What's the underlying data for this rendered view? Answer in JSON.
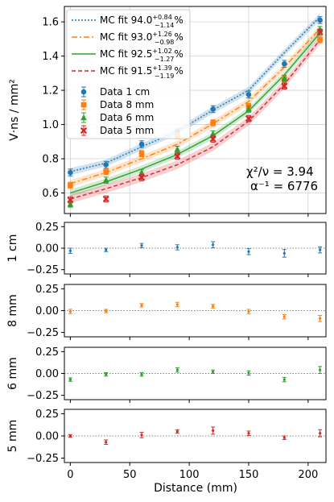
{
  "chart_data": {
    "type": "line",
    "x": [
      0,
      30,
      60,
      90,
      120,
      150,
      180,
      210
    ],
    "xlabel": "Distance (mm)",
    "xlim": [
      -5,
      215
    ],
    "xticks": [
      "0",
      "50",
      "100",
      "150",
      "200"
    ],
    "top": {
      "ylabel": "V·ns / mm²",
      "ylim": [
        0.48,
        1.69
      ],
      "yticks": [
        "0.6",
        "0.8",
        "1.0",
        "1.2",
        "1.4",
        "1.6"
      ],
      "grid": true,
      "legend_position": "top-left",
      "annotation": {
        "line1": "χ²/ν = 3.94",
        "line2": "α⁻¹ = 6776"
      },
      "fits": [
        {
          "name": "MC fit 94.0",
          "sup": "+0.84",
          "sub": "−1.14",
          "suffix": "%",
          "color": "#1f77b4",
          "dash": "2,2",
          "values": [
            0.725,
            0.775,
            0.87,
            0.96,
            1.085,
            1.2,
            1.42,
            1.63
          ],
          "band": 0.02
        },
        {
          "name": "MC fit 93.0",
          "sup": "+1.26",
          "sub": "−0.98",
          "suffix": "%",
          "color": "#ff7f0e",
          "dash": "7,3,2,3",
          "values": [
            0.655,
            0.72,
            0.8,
            0.885,
            1.005,
            1.135,
            1.335,
            1.56
          ],
          "band": 0.02
        },
        {
          "name": "MC fit 92.5",
          "sup": "+1.02",
          "sub": "−1.27",
          "suffix": "%",
          "color": "#2ca02c",
          "dash": "",
          "values": [
            0.6,
            0.665,
            0.74,
            0.825,
            0.935,
            1.08,
            1.29,
            1.535
          ],
          "band": 0.02
        },
        {
          "name": "MC fit 91.5",
          "sup": "+1.39",
          "sub": "−1.19",
          "suffix": "%",
          "color": "#d62728",
          "dash": "5,3",
          "values": [
            0.565,
            0.625,
            0.69,
            0.765,
            0.87,
            1.02,
            1.235,
            1.495
          ],
          "band": 0.025
        }
      ],
      "series": [
        {
          "name": "Data 1 cm",
          "color": "#1f77b4",
          "marker": "circle",
          "values": [
            0.72,
            0.765,
            0.885,
            0.955,
            1.09,
            1.175,
            1.355,
            1.61
          ],
          "err": 0.02
        },
        {
          "name": "Data 8 mm",
          "color": "#ff7f0e",
          "marker": "square",
          "values": [
            0.645,
            0.725,
            0.83,
            0.935,
            1.01,
            1.105,
            1.265,
            1.495
          ],
          "err": 0.018
        },
        {
          "name": "Data 6 mm",
          "color": "#2ca02c",
          "marker": "triangle",
          "values": [
            0.535,
            0.675,
            0.72,
            0.855,
            0.945,
            1.09,
            1.27,
            1.555
          ],
          "err": 0.018
        },
        {
          "name": "Data 5 mm",
          "color": "#d62728",
          "marker": "x",
          "values": [
            0.56,
            0.565,
            0.69,
            0.815,
            0.915,
            1.035,
            1.225,
            1.54
          ],
          "err": 0.018
        }
      ]
    },
    "residuals": {
      "ylim": [
        -0.3,
        0.3
      ],
      "yticks": [
        "−0.25",
        "0.00",
        "0.25"
      ],
      "panels": [
        {
          "label": "1 cm",
          "color": "#1f77b4",
          "values": [
            -0.03,
            -0.02,
            0.03,
            0.01,
            0.04,
            -0.04,
            -0.06,
            -0.02
          ],
          "err": [
            0.03,
            0.02,
            0.025,
            0.03,
            0.035,
            0.035,
            0.045,
            0.035
          ]
        },
        {
          "label": "8 mm",
          "color": "#ff7f0e",
          "values": [
            -0.01,
            -0.005,
            0.06,
            0.07,
            0.05,
            -0.01,
            -0.07,
            -0.09
          ],
          "err": [
            0.025,
            0.02,
            0.02,
            0.025,
            0.02,
            0.025,
            0.025,
            0.035
          ]
        },
        {
          "label": "6 mm",
          "color": "#2ca02c",
          "values": [
            -0.07,
            -0.01,
            -0.01,
            0.04,
            0.02,
            0.005,
            -0.07,
            0.04
          ],
          "err": [
            0.02,
            0.02,
            0.02,
            0.025,
            0.02,
            0.025,
            0.025,
            0.04
          ]
        },
        {
          "label": "5 mm",
          "color": "#d62728",
          "values": [
            0.0,
            -0.07,
            0.01,
            0.05,
            0.06,
            0.03,
            -0.02,
            0.03
          ],
          "err": [
            0.015,
            0.025,
            0.03,
            0.02,
            0.04,
            0.025,
            0.02,
            0.04
          ]
        }
      ]
    }
  }
}
